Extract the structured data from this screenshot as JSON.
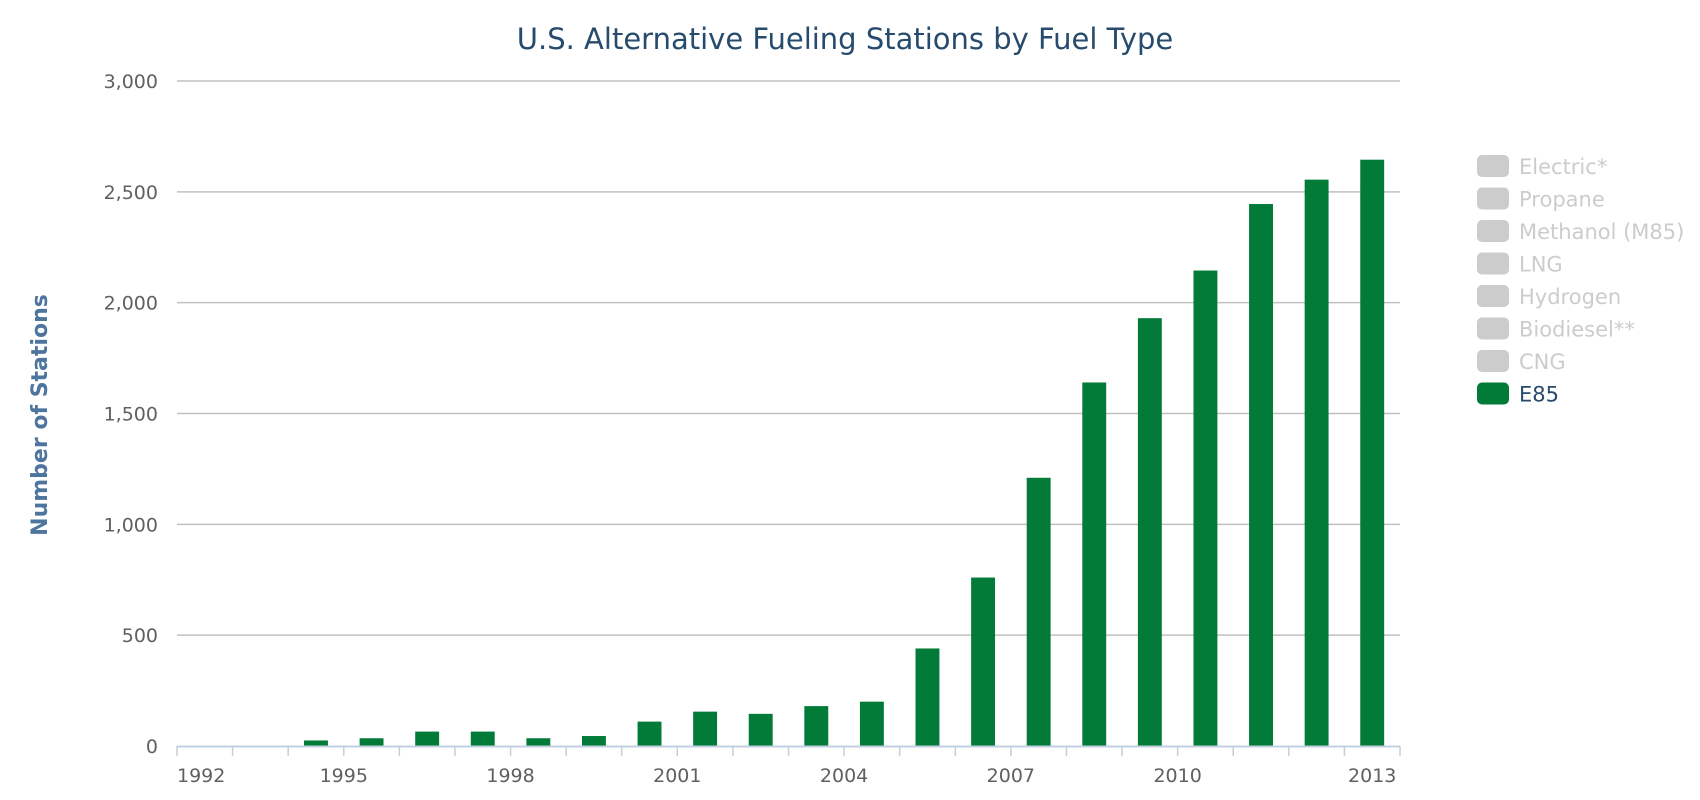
{
  "chart_data": {
    "type": "bar",
    "title": "U.S. Alternative Fueling Stations by Fuel Type",
    "ylabel": "Number of Stations",
    "xlabel": "",
    "ylim": [
      0,
      3000
    ],
    "yticks": [
      0,
      500,
      1000,
      1500,
      2000,
      2500,
      3000
    ],
    "ytick_labels": [
      "0",
      "500",
      "1,000",
      "1,500",
      "2,000",
      "2,500",
      "3,000"
    ],
    "categories": [
      1992,
      1993,
      1994,
      1995,
      1996,
      1997,
      1998,
      1999,
      2000,
      2001,
      2002,
      2003,
      2004,
      2005,
      2006,
      2007,
      2008,
      2009,
      2010,
      2011,
      2012,
      2013
    ],
    "xtick_labels": [
      "1992",
      "1995",
      "1998",
      "2001",
      "2004",
      "2007",
      "2010",
      "2013"
    ],
    "grid": true,
    "legend_position": "right",
    "legend": [
      {
        "label": "Electric*",
        "visible": false,
        "color": "#cccccc"
      },
      {
        "label": "Propane",
        "visible": false,
        "color": "#cccccc"
      },
      {
        "label": "Methanol (M85)",
        "visible": false,
        "color": "#cccccc"
      },
      {
        "label": "LNG",
        "visible": false,
        "color": "#cccccc"
      },
      {
        "label": "Hydrogen",
        "visible": false,
        "color": "#cccccc"
      },
      {
        "label": "Biodiesel**",
        "visible": false,
        "color": "#cccccc"
      },
      {
        "label": "CNG",
        "visible": false,
        "color": "#cccccc"
      },
      {
        "label": "E85",
        "visible": true,
        "color": "#037b38"
      }
    ],
    "series": [
      {
        "name": "E85",
        "color": "#037b38",
        "values": [
          0,
          0,
          25,
          35,
          65,
          65,
          35,
          45,
          110,
          155,
          145,
          180,
          200,
          440,
          760,
          1210,
          1640,
          1930,
          2145,
          2445,
          2555,
          2645
        ]
      }
    ]
  }
}
